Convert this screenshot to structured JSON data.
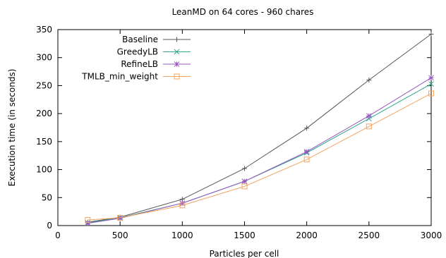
{
  "chart_data": {
    "type": "line",
    "title": "LeanMD on 64 cores - 960 chares",
    "xlabel": "Particles per cell",
    "ylabel": "Execution time (in seconds)",
    "xlim": [
      0,
      3000
    ],
    "ylim": [
      0,
      350
    ],
    "xticks": [
      0,
      500,
      1000,
      1500,
      2000,
      2500,
      3000
    ],
    "yticks": [
      0,
      50,
      100,
      150,
      200,
      250,
      300,
      350
    ],
    "grid": false,
    "legend_position": "top-left",
    "series": [
      {
        "name": "Baseline",
        "color": "#555555",
        "marker": "plus",
        "x": [
          240,
          500,
          1000,
          1500,
          2000,
          2500,
          3000
        ],
        "y": [
          6,
          15,
          47,
          102,
          174,
          260,
          342
        ]
      },
      {
        "name": "GreedyLB",
        "color": "#2ca889",
        "marker": "cross",
        "x": [
          240,
          500,
          1000,
          1500,
          2000,
          2500,
          3000
        ],
        "y": [
          5,
          14,
          40,
          79,
          130,
          191,
          253
        ]
      },
      {
        "name": "RefineLB",
        "color": "#9457c0",
        "marker": "star",
        "x": [
          240,
          500,
          1000,
          1500,
          2000,
          2500,
          3000
        ],
        "y": [
          4,
          13,
          40,
          79,
          132,
          196,
          264
        ]
      },
      {
        "name": "TMLB_min_weight",
        "color": "#f4a460",
        "marker": "square",
        "x": [
          240,
          500,
          1000,
          1500,
          2000,
          2500,
          3000
        ],
        "y": [
          10,
          14,
          36,
          70,
          118,
          177,
          236
        ]
      }
    ]
  }
}
